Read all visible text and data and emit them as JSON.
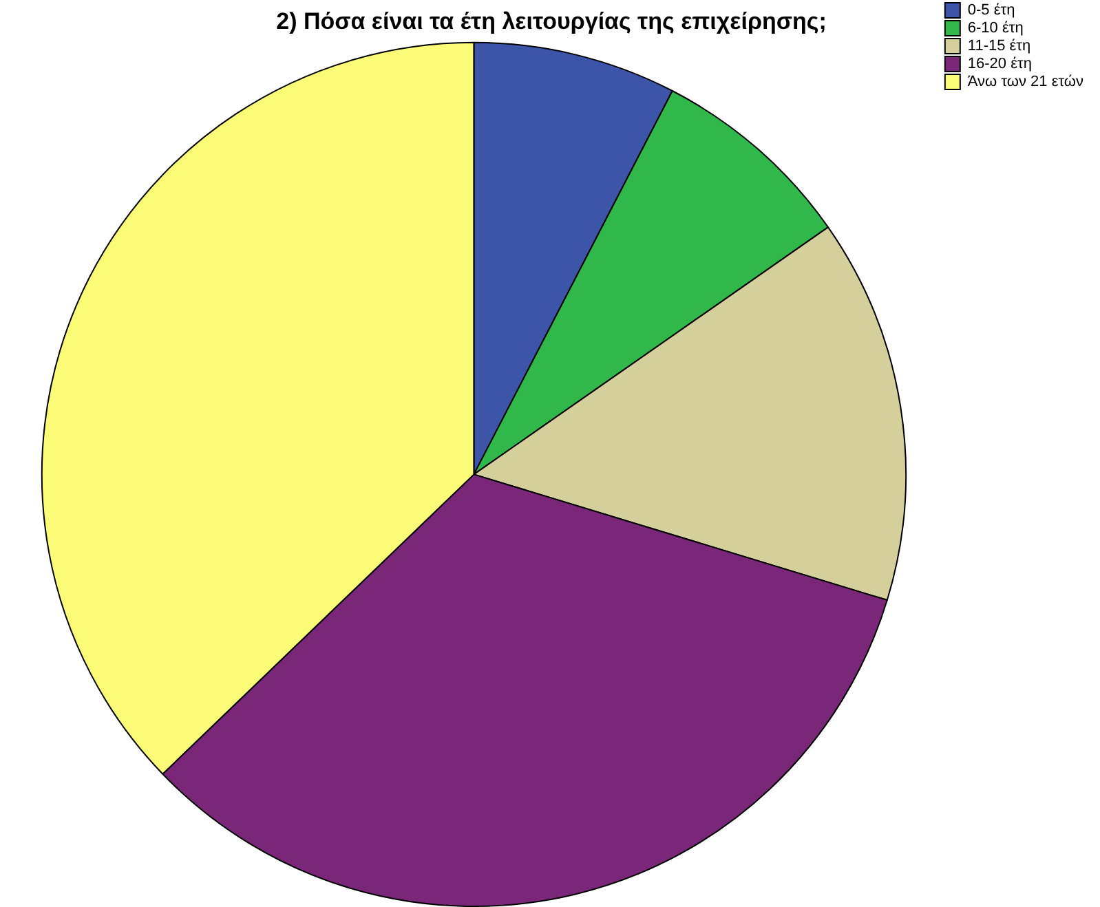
{
  "chart_data": {
    "type": "pie",
    "title": "2) Πόσα είναι τα έτη λειτουργίας της επιχείρησης;",
    "categories": [
      "0-5 έτη",
      "6-10 έτη",
      "11-15 έτη",
      "16-20 έτη",
      "Άνω των 21 ετών"
    ],
    "values": [
      7.6,
      7.7,
      14.4,
      33.1,
      37.2
    ],
    "colors": [
      "#3c55a8",
      "#30b84a",
      "#d5cf9c",
      "#7b2779",
      "#fbfb78"
    ],
    "legend": "top right"
  }
}
